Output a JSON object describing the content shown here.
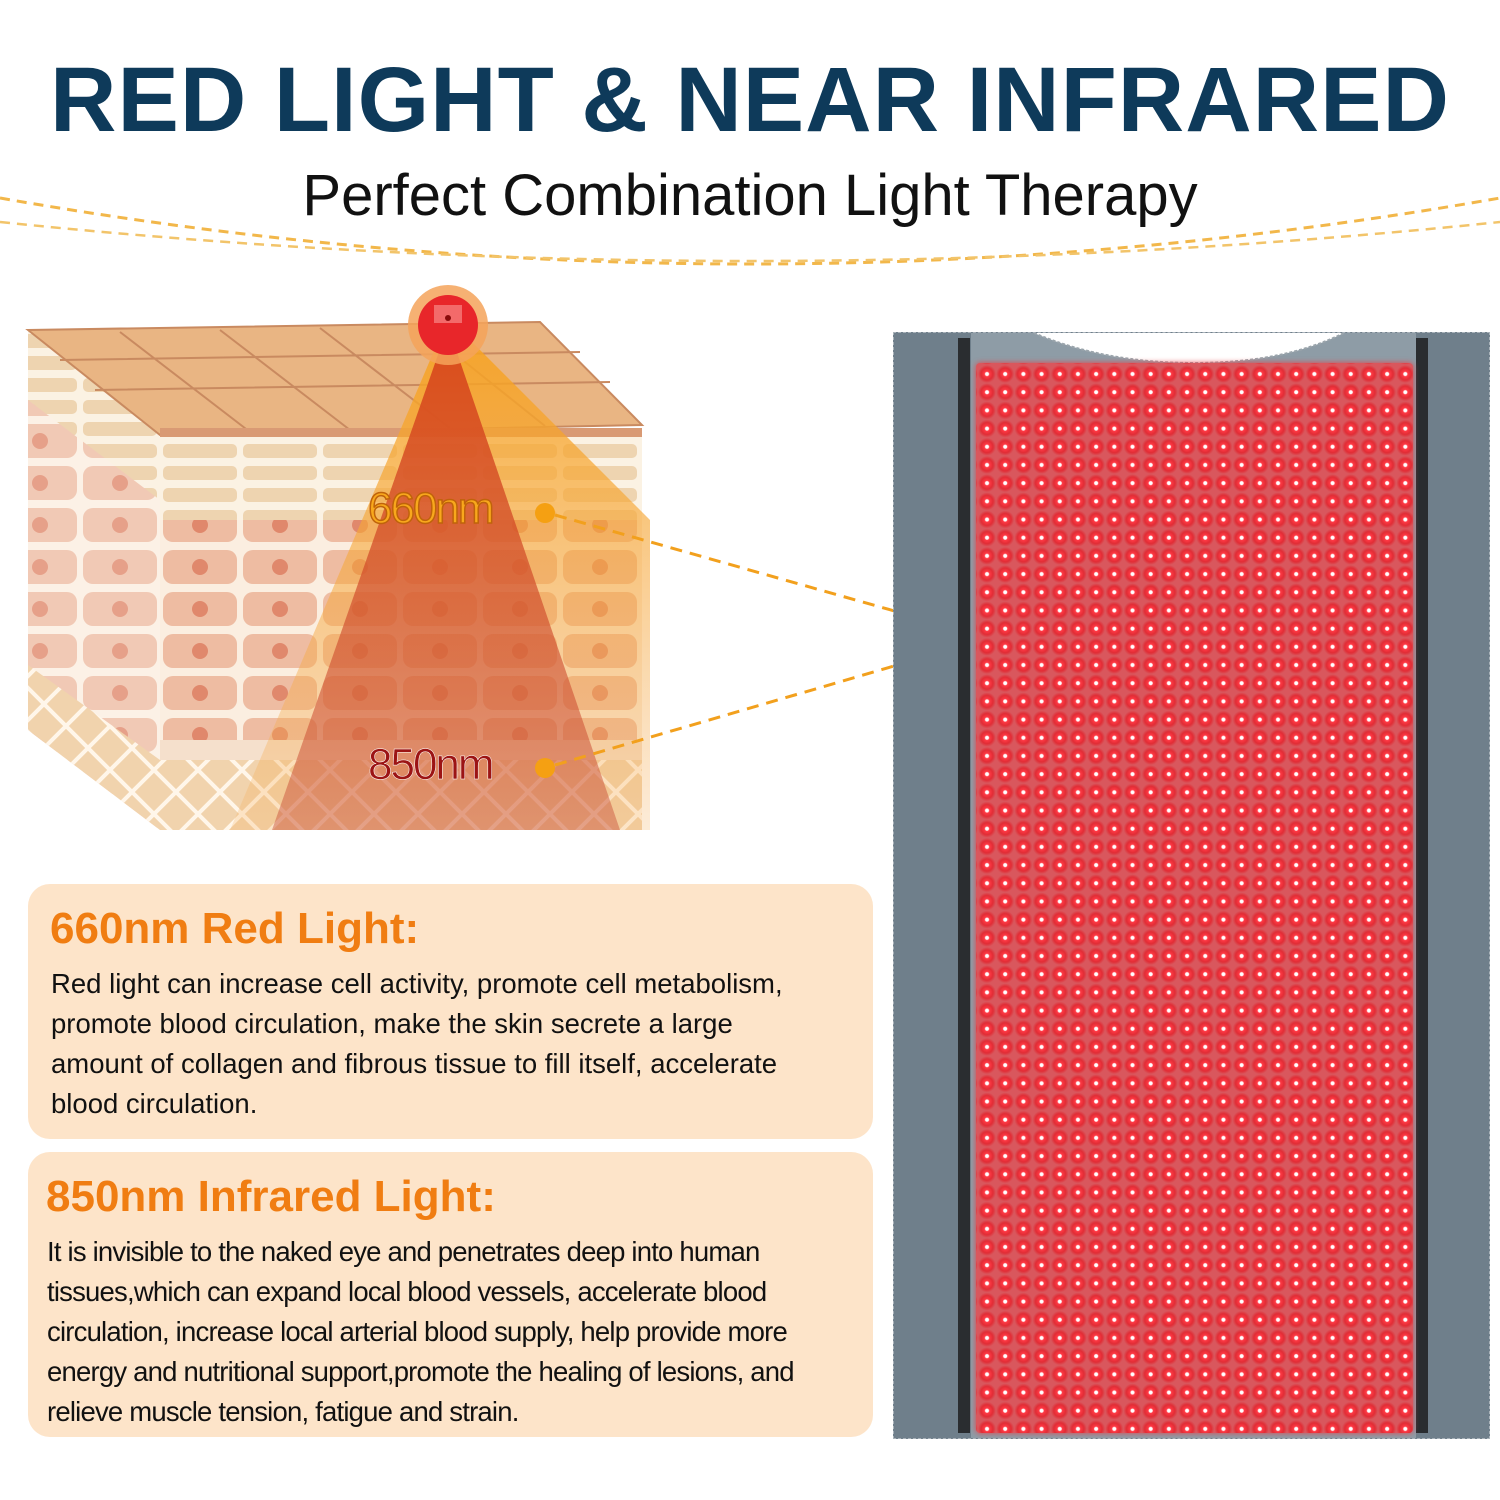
{
  "header": {
    "title": "RED LIGHT & NEAR INFRARED",
    "subtitle": "Perfect Combination Light Therapy"
  },
  "illustration": {
    "label_660": "660nm",
    "label_850": "850nm",
    "accent_color": "#f5a623"
  },
  "cards": [
    {
      "heading": "660nm Red Light:",
      "lines": [
        "Red light can increase cell activity, promote cell metabolism,",
        "promote blood circulation, make the skin secrete a large",
        "amount of collagen and fibrous tissue to fill itself, accelerate",
        "blood circulation."
      ]
    },
    {
      "heading": "850nm Infrared Light:",
      "lines": [
        "It is invisible to the naked eye and penetrates deep into human",
        "tissues,which can expand local blood vessels, accelerate blood",
        "circulation, increase local arterial blood supply, help provide more",
        "energy and nutritional support,promote the healing of lesions, and",
        "relieve muscle tension, fatigue and strain."
      ]
    }
  ],
  "colors": {
    "title": "#0e3a5a",
    "heading": "#f07d12",
    "card_bg": "#fde4c9",
    "led_red": "#e2323a",
    "panel_gray": "#6f7f8b"
  }
}
